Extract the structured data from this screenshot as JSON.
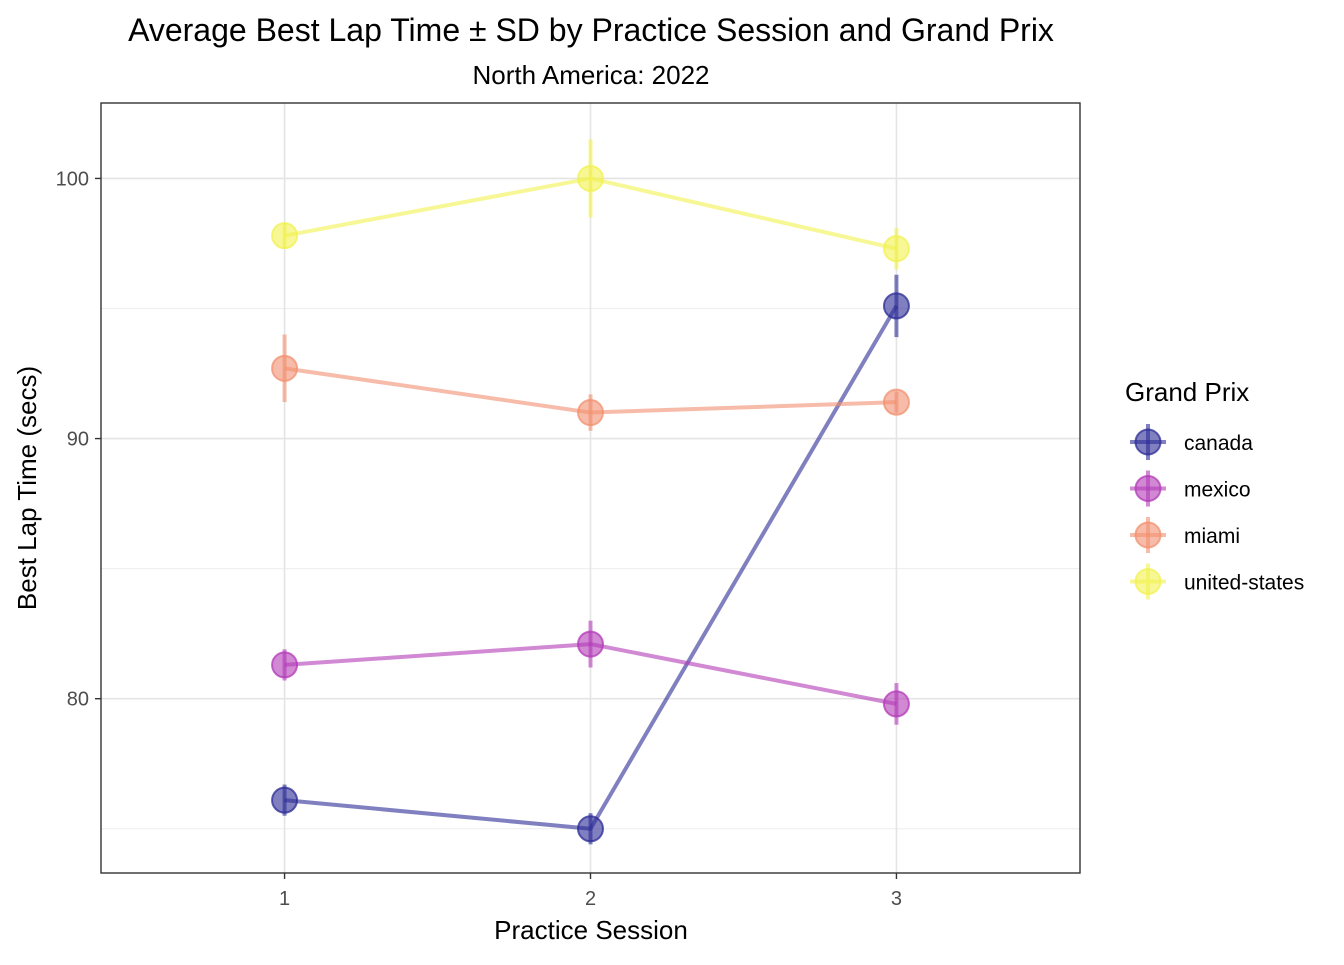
{
  "chart_data": {
    "type": "line",
    "title": "Average Best Lap Time ± SD by Practice Session and Grand Prix",
    "subtitle": "North America: 2022",
    "xlabel": "Practice Session",
    "ylabel": "Best Lap Time (secs)",
    "x": [
      1,
      2,
      3
    ],
    "x_tick_labels": [
      "1",
      "2",
      "3"
    ],
    "xlim": [
      0.4,
      3.6
    ],
    "ylim": [
      73.3,
      102.9
    ],
    "y_ticks": [
      80,
      90,
      100
    ],
    "y_tick_labels": [
      "80",
      "90",
      "100"
    ],
    "y_minor_ticks": [
      75,
      85,
      95
    ],
    "grid": true,
    "legend": {
      "title": "Grand Prix",
      "position": "right"
    },
    "series": [
      {
        "name": "canada",
        "color": "#2b2b96",
        "values": [
          76.1,
          75.0,
          95.1
        ],
        "sd": [
          0.6,
          0.6,
          1.2
        ]
      },
      {
        "name": "mexico",
        "color": "#b23ab8",
        "values": [
          81.3,
          82.1,
          79.8
        ],
        "sd": [
          0.6,
          0.9,
          0.8
        ]
      },
      {
        "name": "miami",
        "color": "#f2906f",
        "values": [
          92.7,
          91.0,
          91.4
        ],
        "sd": [
          1.3,
          0.7,
          0.4
        ]
      },
      {
        "name": "united-states",
        "color": "#f2f250",
        "values": [
          97.8,
          100.0,
          97.3
        ],
        "sd": [
          0.5,
          1.5,
          0.8
        ]
      }
    ]
  }
}
